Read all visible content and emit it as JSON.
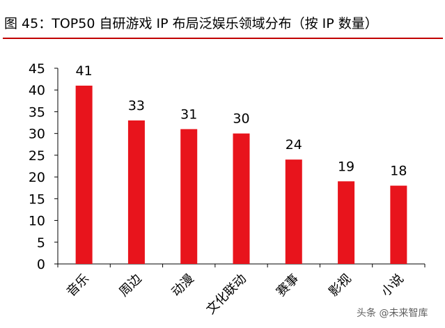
{
  "figure": {
    "title": "图 45：TOP50 自研游戏 IP 布局泛娱乐领域分布（按 IP 数量）"
  },
  "watermark": "头条 @未来智库",
  "colors": {
    "bar": "#e8141c",
    "rule": "#c00000",
    "axis": "#000000"
  },
  "chart_data": {
    "type": "bar",
    "title": "图 45：TOP50 自研游戏 IP 布局泛娱乐领域分布（按 IP 数量）",
    "categories": [
      "音乐",
      "周边",
      "动漫",
      "文化联动",
      "赛事",
      "影视",
      "小说"
    ],
    "values": [
      41,
      33,
      31,
      30,
      24,
      19,
      18
    ],
    "xlabel": "",
    "ylabel": "",
    "ylim": [
      0,
      45
    ],
    "yticks": [
      0,
      5,
      10,
      15,
      20,
      25,
      30,
      35,
      40,
      45
    ],
    "grid": false,
    "legend": "none",
    "data_labels": true
  }
}
